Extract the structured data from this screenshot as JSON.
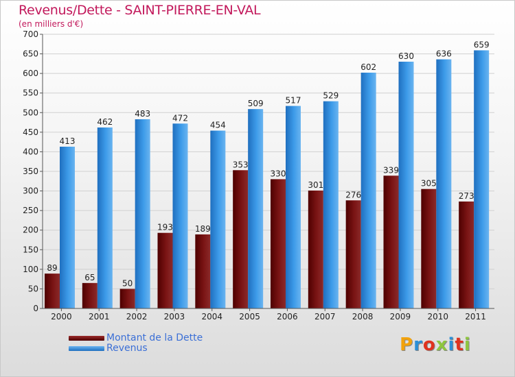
{
  "title": "Revenus/Dette - SAINT-PIERRE-EN-VAL",
  "subtitle": "(en milliers d'€)",
  "colors": {
    "dette": "#7a1414",
    "revenus": "#3d9be9",
    "title": "#c2185b"
  },
  "logo": {
    "text": "Proxiti",
    "colors": [
      "#f2a20c",
      "#2c8fd6",
      "#e0321e",
      "#8ec63f",
      "#2c8fd6",
      "#e0321e",
      "#8ec63f"
    ]
  },
  "chart_data": {
    "type": "bar",
    "categories": [
      "2000",
      "2001",
      "2002",
      "2003",
      "2004",
      "2005",
      "2006",
      "2007",
      "2008",
      "2009",
      "2010",
      "2011"
    ],
    "series": [
      {
        "name": "Montant de la Dette",
        "values": [
          89,
          65,
          50,
          193,
          189,
          353,
          330,
          301,
          276,
          339,
          305,
          273
        ]
      },
      {
        "name": "Revenus",
        "values": [
          413,
          462,
          483,
          472,
          454,
          509,
          517,
          529,
          602,
          630,
          636,
          659
        ]
      }
    ],
    "title": "Revenus/Dette - SAINT-PIERRE-EN-VAL",
    "ylim": [
      0,
      700
    ],
    "yticks": [
      0,
      50,
      100,
      150,
      200,
      250,
      300,
      350,
      400,
      450,
      500,
      550,
      600,
      650,
      700
    ],
    "grid": true,
    "legend": "bottom-left"
  }
}
